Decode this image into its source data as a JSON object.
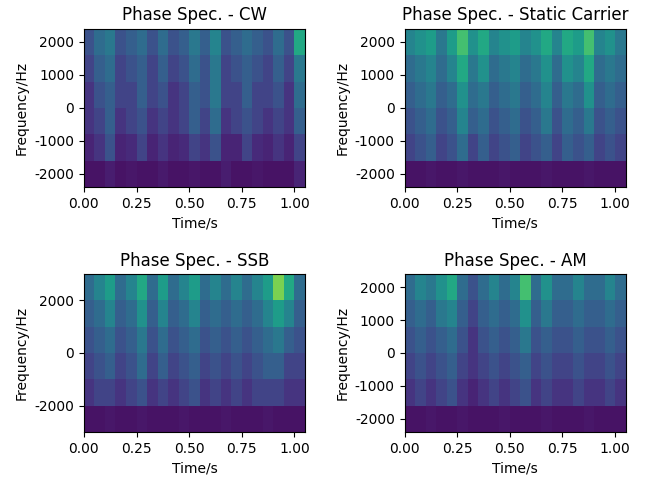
{
  "chart_data": [
    {
      "type": "heatmap",
      "title": "Phase Spec. - CW",
      "x_label": "Time/s",
      "y_label": "Frequency/Hz",
      "xlim": [
        0,
        1.05
      ],
      "ylim": [
        -2400,
        2400
      ],
      "xticks": [
        {
          "value": 0,
          "label": "0.00"
        },
        {
          "value": 0.25,
          "label": "0.25"
        },
        {
          "value": 0.5,
          "label": "0.50"
        },
        {
          "value": 0.75,
          "label": "0.75"
        },
        {
          "value": 1.0,
          "label": "1.00"
        }
      ],
      "yticks": [
        -2000,
        -1000,
        0,
        1000,
        2000
      ],
      "color_range": [
        0,
        1
      ],
      "cells": [
        [
          0.05,
          0.05,
          0.08,
          0.05,
          0.06,
          0.05,
          0.05,
          0.07,
          0.05,
          0.05,
          0.06,
          0.05,
          0.05,
          0.08,
          0.05,
          0.05,
          0.06,
          0.05,
          0.05,
          0.05,
          0.1
        ],
        [
          0.1,
          0.15,
          0.25,
          0.1,
          0.12,
          0.2,
          0.1,
          0.15,
          0.1,
          0.12,
          0.2,
          0.15,
          0.25,
          0.1,
          0.1,
          0.2,
          0.12,
          0.1,
          0.15,
          0.1,
          0.2
        ],
        [
          0.15,
          0.2,
          0.3,
          0.15,
          0.2,
          0.25,
          0.15,
          0.2,
          0.15,
          0.2,
          0.3,
          0.2,
          0.35,
          0.15,
          0.2,
          0.25,
          0.2,
          0.15,
          0.2,
          0.15,
          0.3
        ],
        [
          0.15,
          0.25,
          0.3,
          0.2,
          0.2,
          0.3,
          0.2,
          0.25,
          0.15,
          0.2,
          0.3,
          0.25,
          0.4,
          0.2,
          0.2,
          0.3,
          0.2,
          0.2,
          0.25,
          0.15,
          0.35
        ],
        [
          0.2,
          0.3,
          0.35,
          0.2,
          0.25,
          0.3,
          0.2,
          0.3,
          0.2,
          0.25,
          0.35,
          0.25,
          0.4,
          0.2,
          0.25,
          0.3,
          0.25,
          0.2,
          0.3,
          0.2,
          0.4
        ],
        [
          0.25,
          0.35,
          0.4,
          0.25,
          0.3,
          0.35,
          0.25,
          0.35,
          0.25,
          0.3,
          0.4,
          0.3,
          0.45,
          0.25,
          0.3,
          0.35,
          0.3,
          0.25,
          0.35,
          0.25,
          0.6
        ]
      ]
    },
    {
      "type": "heatmap",
      "title": "Phase Spec. - Static Carrier",
      "x_label": "Time/s",
      "y_label": "Frequency/Hz",
      "xlim": [
        0,
        1.05
      ],
      "ylim": [
        -2400,
        2400
      ],
      "xticks": [
        {
          "value": 0,
          "label": "0.00"
        },
        {
          "value": 0.25,
          "label": "0.25"
        },
        {
          "value": 0.5,
          "label": "0.50"
        },
        {
          "value": 0.75,
          "label": "0.75"
        },
        {
          "value": 1.0,
          "label": "1.00"
        }
      ],
      "yticks": [
        -2000,
        -1000,
        0,
        1000,
        2000
      ],
      "color_range": [
        0,
        1
      ],
      "cells": [
        [
          0.05,
          0.05,
          0.06,
          0.05,
          0.05,
          0.06,
          0.05,
          0.05,
          0.05,
          0.06,
          0.05,
          0.05,
          0.05,
          0.06,
          0.05,
          0.05,
          0.05,
          0.06,
          0.05,
          0.05,
          0.05
        ],
        [
          0.2,
          0.25,
          0.3,
          0.2,
          0.25,
          0.35,
          0.2,
          0.3,
          0.2,
          0.25,
          0.3,
          0.2,
          0.25,
          0.3,
          0.2,
          0.3,
          0.25,
          0.3,
          0.2,
          0.25,
          0.2
        ],
        [
          0.25,
          0.3,
          0.35,
          0.25,
          0.3,
          0.45,
          0.3,
          0.35,
          0.25,
          0.3,
          0.35,
          0.25,
          0.3,
          0.4,
          0.25,
          0.35,
          0.3,
          0.4,
          0.25,
          0.3,
          0.25
        ],
        [
          0.3,
          0.35,
          0.4,
          0.3,
          0.35,
          0.5,
          0.35,
          0.4,
          0.3,
          0.35,
          0.4,
          0.3,
          0.35,
          0.45,
          0.3,
          0.4,
          0.35,
          0.5,
          0.3,
          0.35,
          0.3
        ],
        [
          0.35,
          0.4,
          0.45,
          0.35,
          0.45,
          0.6,
          0.4,
          0.5,
          0.35,
          0.4,
          0.45,
          0.35,
          0.4,
          0.5,
          0.35,
          0.5,
          0.45,
          0.6,
          0.35,
          0.4,
          0.35
        ],
        [
          0.45,
          0.5,
          0.55,
          0.4,
          0.55,
          0.7,
          0.5,
          0.6,
          0.45,
          0.5,
          0.55,
          0.45,
          0.5,
          0.6,
          0.45,
          0.6,
          0.55,
          0.7,
          0.45,
          0.5,
          0.4
        ]
      ]
    },
    {
      "type": "heatmap",
      "title": "Phase Spec. - SSB",
      "x_label": "Time/s",
      "y_label": "Frequency/Hz",
      "xlim": [
        0,
        1.05
      ],
      "ylim": [
        -3000,
        3000
      ],
      "xticks": [
        {
          "value": 0,
          "label": "0.00"
        },
        {
          "value": 0.25,
          "label": "0.25"
        },
        {
          "value": 0.5,
          "label": "0.50"
        },
        {
          "value": 0.75,
          "label": "0.75"
        },
        {
          "value": 1.0,
          "label": "1.00"
        }
      ],
      "yticks": [
        -2000,
        0,
        2000
      ],
      "color_range": [
        0,
        1
      ],
      "cells": [
        [
          0.05,
          0.05,
          0.06,
          0.05,
          0.05,
          0.06,
          0.05,
          0.05,
          0.05,
          0.06,
          0.05,
          0.05,
          0.05,
          0.06,
          0.05,
          0.05,
          0.05,
          0.06,
          0.05,
          0.05,
          0.05
        ],
        [
          0.15,
          0.2,
          0.2,
          0.15,
          0.2,
          0.25,
          0.15,
          0.2,
          0.15,
          0.2,
          0.25,
          0.15,
          0.2,
          0.15,
          0.2,
          0.15,
          0.2,
          0.2,
          0.2,
          0.15,
          0.15
        ],
        [
          0.2,
          0.25,
          0.3,
          0.2,
          0.25,
          0.35,
          0.2,
          0.3,
          0.2,
          0.25,
          0.3,
          0.2,
          0.25,
          0.2,
          0.25,
          0.2,
          0.25,
          0.3,
          0.3,
          0.2,
          0.2
        ],
        [
          0.25,
          0.3,
          0.35,
          0.25,
          0.3,
          0.4,
          0.25,
          0.35,
          0.25,
          0.3,
          0.35,
          0.25,
          0.3,
          0.25,
          0.3,
          0.25,
          0.3,
          0.35,
          0.4,
          0.3,
          0.25
        ],
        [
          0.3,
          0.35,
          0.45,
          0.3,
          0.35,
          0.5,
          0.3,
          0.45,
          0.3,
          0.35,
          0.45,
          0.3,
          0.35,
          0.3,
          0.35,
          0.3,
          0.35,
          0.45,
          0.55,
          0.45,
          0.3
        ],
        [
          0.35,
          0.45,
          0.55,
          0.35,
          0.45,
          0.6,
          0.35,
          0.55,
          0.35,
          0.45,
          0.55,
          0.35,
          0.45,
          0.35,
          0.45,
          0.35,
          0.45,
          0.55,
          0.8,
          0.6,
          0.35
        ]
      ]
    },
    {
      "type": "heatmap",
      "title": "Phase Spec. - AM",
      "x_label": "Time/s",
      "y_label": "Frequency/Hz",
      "xlim": [
        0,
        1.05
      ],
      "ylim": [
        -2400,
        2400
      ],
      "xticks": [
        {
          "value": 0,
          "label": "0.00"
        },
        {
          "value": 0.25,
          "label": "0.25"
        },
        {
          "value": 0.5,
          "label": "0.50"
        },
        {
          "value": 0.75,
          "label": "0.75"
        },
        {
          "value": 1.0,
          "label": "1.00"
        }
      ],
      "yticks": [
        -2000,
        -1000,
        0,
        1000,
        2000
      ],
      "color_range": [
        0,
        1
      ],
      "cells": [
        [
          0.05,
          0.05,
          0.06,
          0.05,
          0.05,
          0.06,
          0.05,
          0.05,
          0.05,
          0.06,
          0.05,
          0.05,
          0.05,
          0.06,
          0.05,
          0.05,
          0.05,
          0.06,
          0.05,
          0.05,
          0.05
        ],
        [
          0.15,
          0.2,
          0.15,
          0.2,
          0.25,
          0.15,
          0.1,
          0.15,
          0.2,
          0.15,
          0.2,
          0.25,
          0.15,
          0.2,
          0.15,
          0.15,
          0.2,
          0.15,
          0.15,
          0.2,
          0.15
        ],
        [
          0.2,
          0.25,
          0.2,
          0.25,
          0.3,
          0.2,
          0.15,
          0.2,
          0.25,
          0.2,
          0.25,
          0.3,
          0.2,
          0.25,
          0.2,
          0.2,
          0.25,
          0.2,
          0.2,
          0.25,
          0.2
        ],
        [
          0.25,
          0.3,
          0.25,
          0.3,
          0.35,
          0.25,
          0.15,
          0.25,
          0.3,
          0.25,
          0.3,
          0.4,
          0.25,
          0.3,
          0.25,
          0.25,
          0.3,
          0.25,
          0.25,
          0.3,
          0.25
        ],
        [
          0.3,
          0.35,
          0.3,
          0.4,
          0.45,
          0.3,
          0.2,
          0.3,
          0.35,
          0.3,
          0.35,
          0.5,
          0.3,
          0.4,
          0.3,
          0.3,
          0.35,
          0.3,
          0.3,
          0.35,
          0.3
        ],
        [
          0.35,
          0.45,
          0.4,
          0.5,
          0.6,
          0.35,
          0.25,
          0.35,
          0.45,
          0.35,
          0.45,
          0.7,
          0.35,
          0.5,
          0.35,
          0.35,
          0.45,
          0.35,
          0.35,
          0.45,
          0.35
        ]
      ]
    }
  ]
}
